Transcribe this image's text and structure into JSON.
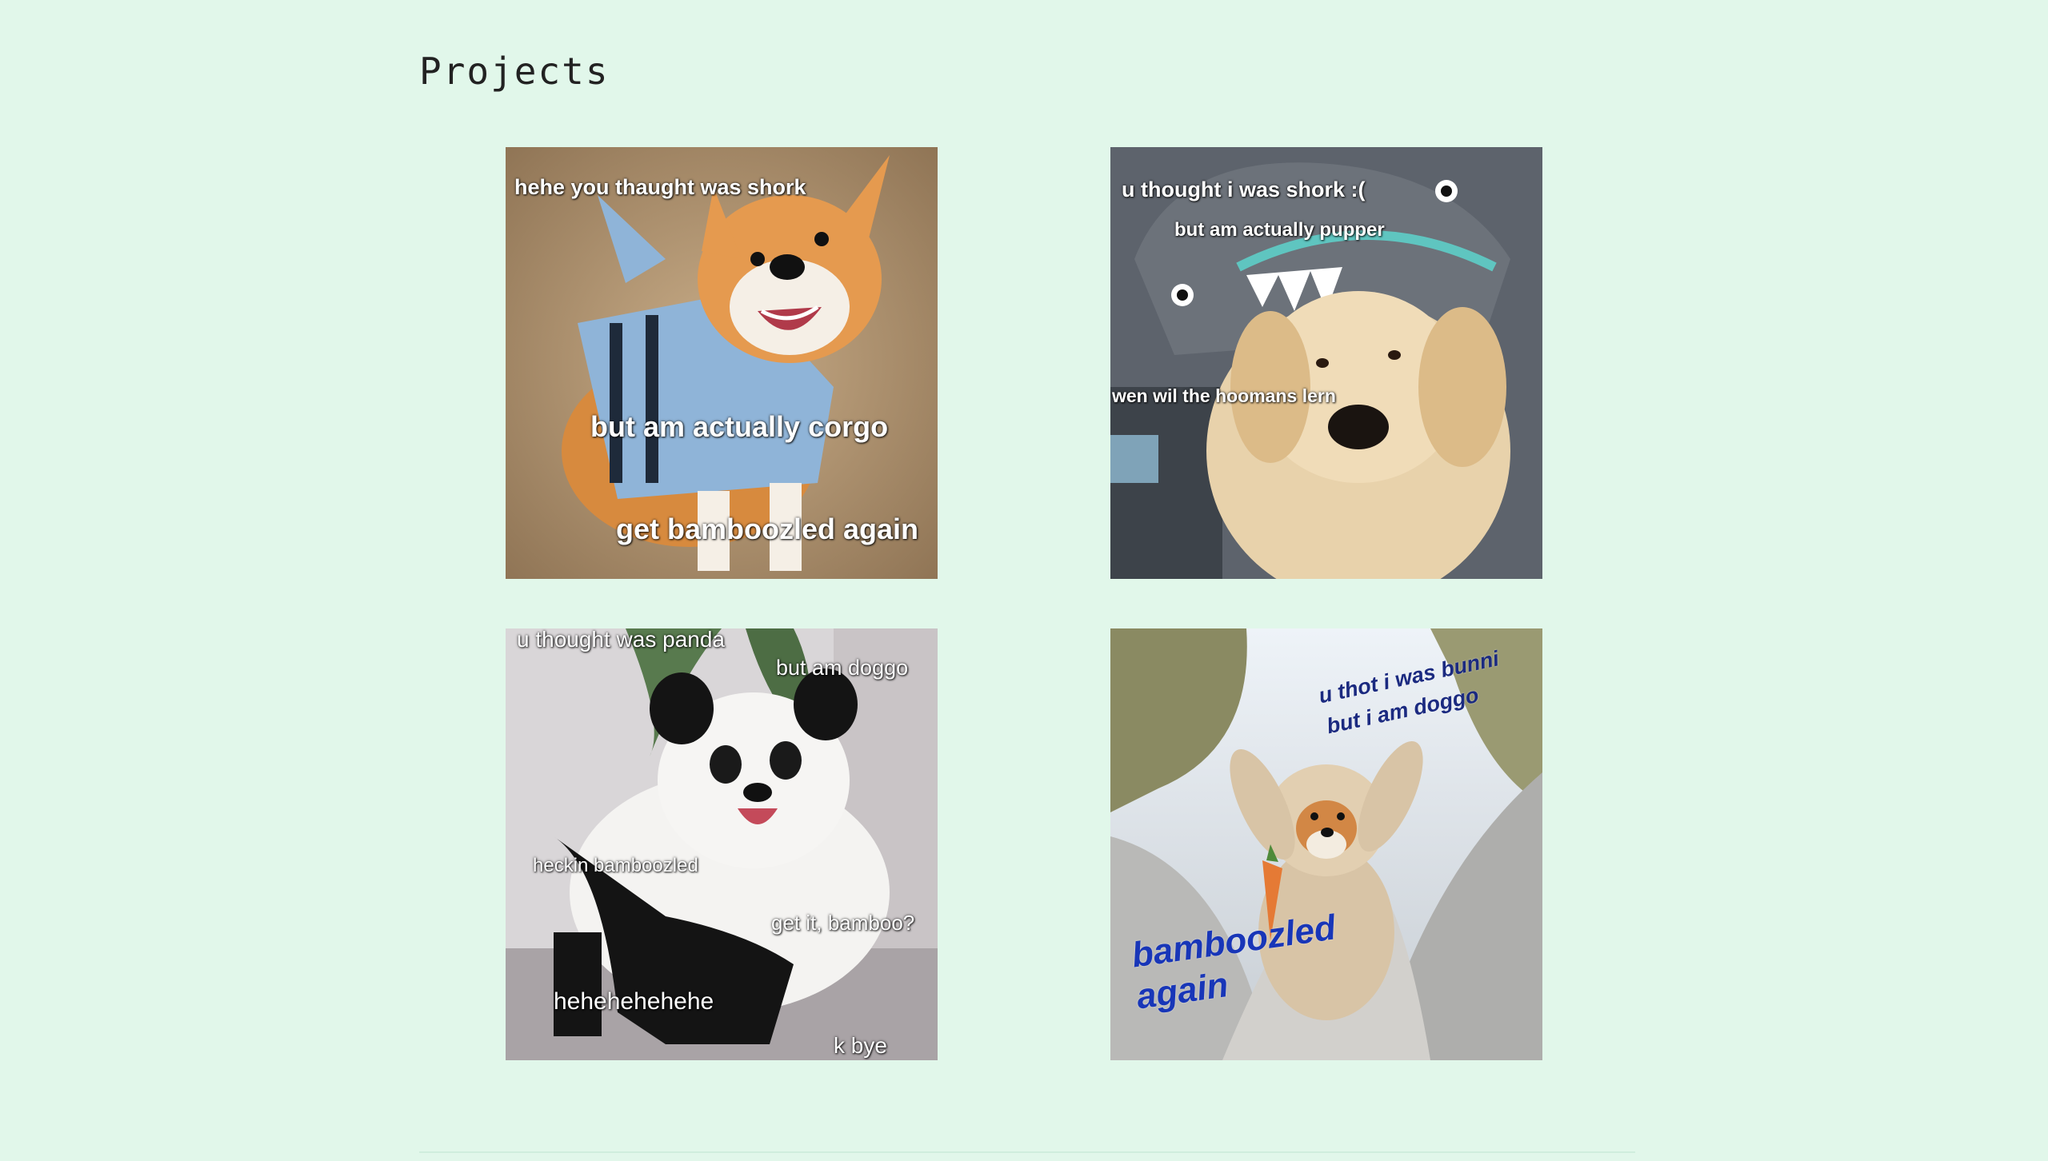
{
  "page": {
    "title": "Projects"
  },
  "projects": [
    {
      "name": "Corgi in shark life vest",
      "captions": [
        "hehe you thaught was shork",
        "but am actually corgo",
        "get bamboozled again"
      ]
    },
    {
      "name": "Golden retriever puppy in shark hat",
      "captions": [
        "u thought i was shork :(",
        "but am actually pupper",
        "wen wil the hoomans lern"
      ]
    },
    {
      "name": "Samoyed in panda costume",
      "captions": [
        "u thought was panda",
        "but am doggo",
        "heckin bamboozled",
        "get it, bamboo?",
        "hehehehehehe",
        "k bye"
      ]
    },
    {
      "name": "Corgi in bunny costume",
      "captions": [
        "u thot i was bunni",
        "but i am doggo",
        "bamboozled",
        "again"
      ]
    }
  ],
  "colors": {
    "background": "#e1f7ea",
    "title": "#222222",
    "caption_blue": "#1836b8"
  }
}
